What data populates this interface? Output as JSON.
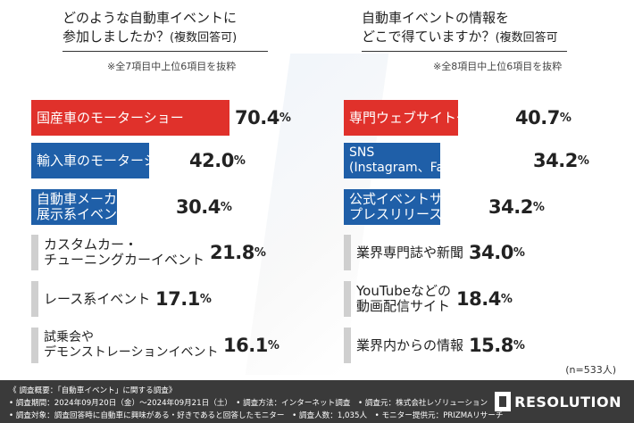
{
  "left": {
    "question_line1": "どのような自動車イベントに",
    "question_line2": "参加しましたか？",
    "question_sub": "(複数回答可)",
    "note": "※全7項目中上位6項目を抜粋"
  },
  "right": {
    "question_line1": "自動車イベントの情報を",
    "question_line2": "どこで得ていますか？",
    "question_sub": "(複数回答可",
    "note": "※全8項目中上位6項目を抜粋"
  },
  "sample_note": "(n=533人)",
  "footer": {
    "line1": "《 調査概要：「自動車イベント」に関する調査》",
    "line2": "• 調査期間：2024年09月20日（金）〜2024年09月21日（土）　• 調査方法：インターネット調査　• 調査元：株式会社レゾリューション",
    "line3": "• 調査対象：調査回答時に自動車に興味がある・好きであると回答したモニター　• 調査人数：1,035人　• モニター提供元：PRIZMAリサーチ"
  },
  "logo_text": "RESOLUTION",
  "colors": {
    "red": "#e0312b",
    "blue": "#1f5fa8",
    "gray": "#cfcfcf"
  },
  "chart_data": [
    {
      "type": "bar",
      "orientation": "horizontal",
      "title": "どのような自動車イベントに参加しましたか？(複数回答可)",
      "categories": [
        "国産車のモーターショー",
        "輸入車のモーターショー",
        "自動車メーカー主催の展示系イベント",
        "カスタムカー・チューニングカーイベント",
        "レース系イベント",
        "試乗会やデモンストレーションイベント"
      ],
      "labels": [
        [
          "国産車のモーターショー"
        ],
        [
          "輸入車のモーターショー"
        ],
        [
          "自動車メーカー主催の",
          "展示系イベント"
        ],
        [
          "カスタムカー・",
          "チューニングカーイベント"
        ],
        [
          "レース系イベント"
        ],
        [
          "試乗会や",
          "デモンストレーションイベント"
        ]
      ],
      "values": [
        70.4,
        42.0,
        30.4,
        21.8,
        17.1,
        16.1
      ],
      "value_labels": [
        "70.4",
        "42.0",
        "30.4",
        "21.8",
        "17.1",
        "16.1"
      ],
      "unit": "%",
      "bar_colors": [
        "red",
        "blue",
        "blue",
        "gray",
        "gray",
        "gray"
      ]
    },
    {
      "type": "bar",
      "orientation": "horizontal",
      "title": "自動車イベントの情報をどこで得ていますか？(複数回答可",
      "categories": [
        "専門ウェブサイトやブログ",
        "SNS(Instagram、Facebook、X等)",
        "公式イベントサイトやプレスリリース",
        "業界専門誌や新聞",
        "YouTubeなどの動画配信サイト",
        "業界内からの情報"
      ],
      "labels": [
        [
          "専門ウェブサイトやブログ"
        ],
        [
          "SNS",
          "(Instagram、Facebook、X等)"
        ],
        [
          "公式イベントサイトや",
          "プレスリリース"
        ],
        [
          "業界専門誌や新聞"
        ],
        [
          "YouTubeなどの",
          "動画配信サイト"
        ],
        [
          "業界内からの情報"
        ]
      ],
      "values": [
        40.7,
        34.2,
        34.2,
        34.0,
        18.4,
        15.8
      ],
      "value_labels": [
        "40.7",
        "34.2",
        "34.2",
        "34.0",
        "18.4",
        "15.8"
      ],
      "unit": "%",
      "bar_colors": [
        "red",
        "blue",
        "blue",
        "gray",
        "gray",
        "gray"
      ]
    }
  ]
}
